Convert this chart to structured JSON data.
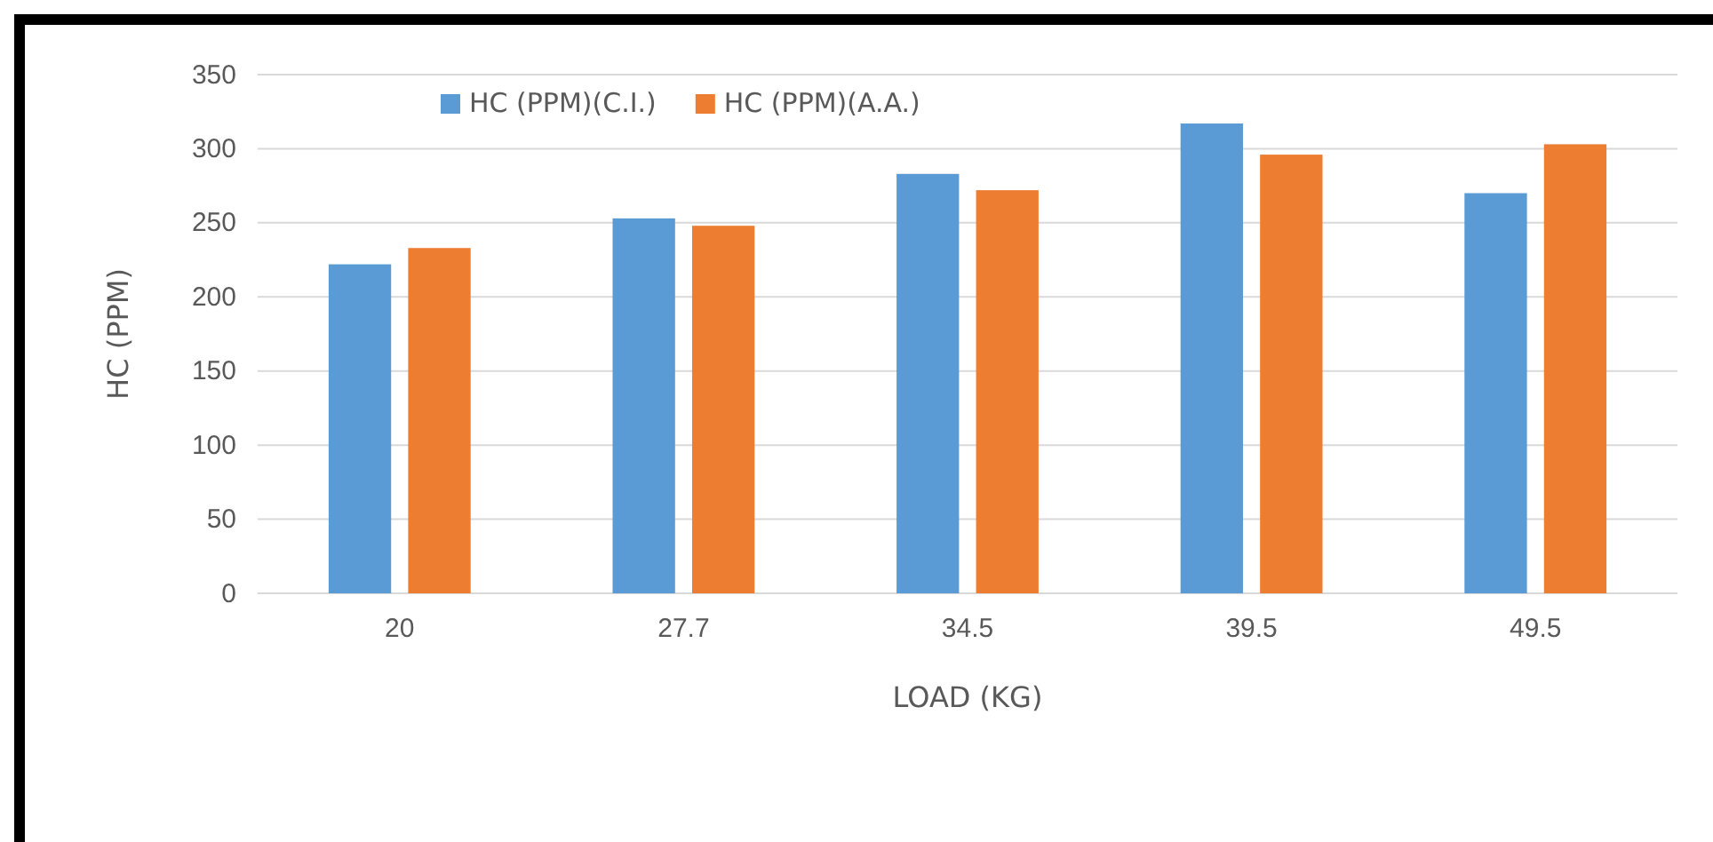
{
  "chart_data": {
    "type": "bar",
    "xlabel": "LOAD (KG)",
    "ylabel": "HC (PPM)",
    "categories": [
      "20",
      "27.7",
      "34.5",
      "39.5",
      "49.5"
    ],
    "series": [
      {
        "name": "HC (PPM)(C.I.)",
        "color": "#5b9bd5",
        "values": [
          222,
          253,
          283,
          317,
          270
        ]
      },
      {
        "name": "HC (PPM)(A.A.)",
        "color": "#ed7d31",
        "values": [
          233,
          248,
          272,
          296,
          303
        ]
      }
    ],
    "ylim": [
      0,
      350
    ],
    "yticks": [
      0,
      50,
      100,
      150,
      200,
      250,
      300,
      350
    ],
    "grid": "y",
    "legend": "top"
  }
}
